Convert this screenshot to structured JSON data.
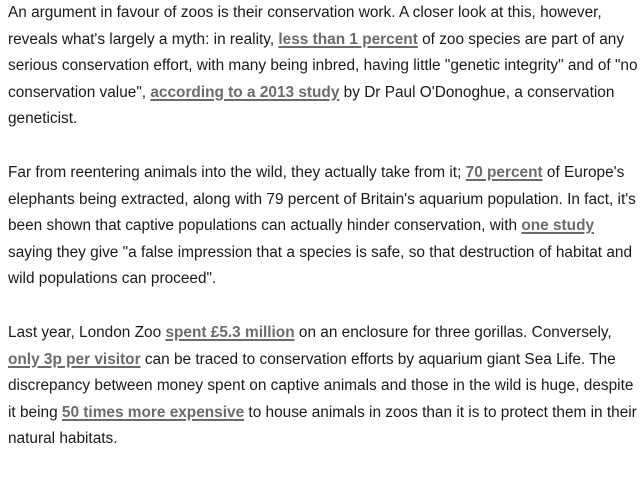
{
  "paragraphs": [
    {
      "segments": [
        {
          "text": "An argument in favour of zoos is their conservation work. A closer look at this, however, reveals what's largely a myth: in reality, "
        },
        {
          "text": "less than 1 percent",
          "link": true
        },
        {
          "text": " of zoo species are part of any serious conservation effort, with many being inbred, having little \"genetic integrity\" and of \"no conservation value\", "
        },
        {
          "text": "according to a 2013 study",
          "link": true
        },
        {
          "text": " by Dr Paul O'Donoghue, a conservation geneticist."
        }
      ]
    },
    {
      "segments": [
        {
          "text": "Far from reentering animals into the wild, they actually take from it; "
        },
        {
          "text": "70 percent",
          "link": true
        },
        {
          "text": " of Europe's elephants being extracted, along with 79 percent of Britain's aquarium population. In fact, it's been shown that captive populations can actually hinder conservation, with "
        },
        {
          "text": "one study",
          "link": true
        },
        {
          "text": " saying they give \"a false impression that a species is safe, so that destruction of habitat and wild populations can proceed\"."
        }
      ]
    },
    {
      "segments": [
        {
          "text": "Last year, London Zoo "
        },
        {
          "text": "spent £5.3 million",
          "link": true
        },
        {
          "text": " on an enclosure for three gorillas. Conversely, "
        },
        {
          "text": "only 3p per visitor",
          "link": true
        },
        {
          "text": " can be traced to conservation efforts by aquarium giant Sea Life. The discrepancy between money spent on captive animals and those in the wild is huge, despite it being "
        },
        {
          "text": "50 times more expensive",
          "link": true
        },
        {
          "text": " to house animals in zoos than it is to protect them in their natural habitats."
        }
      ]
    }
  ],
  "colors": {
    "text": "#1a1a1a",
    "link": "#6b6b6b",
    "background": "#ffffff"
  }
}
